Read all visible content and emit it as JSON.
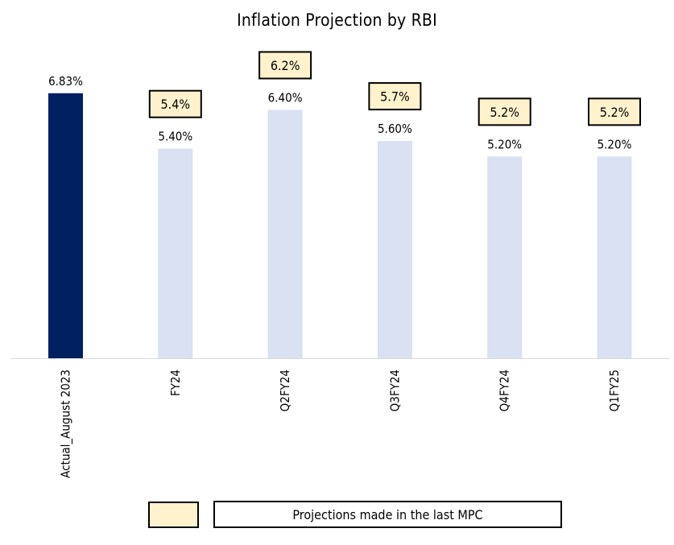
{
  "chart_data": {
    "type": "bar",
    "title": "Inflation Projection by RBI",
    "categories": [
      "Actual_August 2023",
      "FY24",
      "Q2FY24",
      "Q3FY24",
      "Q4FY24",
      "Q1FY25"
    ],
    "values": [
      6.83,
      5.4,
      6.4,
      5.6,
      5.2,
      5.2
    ],
    "value_labels": [
      "6.83%",
      "5.40%",
      "6.40%",
      "5.60%",
      "5.20%",
      "5.20%"
    ],
    "previous_projections": [
      null,
      "5.4%",
      "6.2%",
      "5.7%",
      "5.2%",
      "5.2%"
    ],
    "ylim": [
      0,
      7.5
    ],
    "grid": false,
    "colors": {
      "actual": "#002060",
      "projection": "#D9E1F2",
      "previous_projection_box": "#FFF2CC"
    },
    "legend": {
      "position": "bottom",
      "label": "Projections made in the last MPC"
    }
  }
}
